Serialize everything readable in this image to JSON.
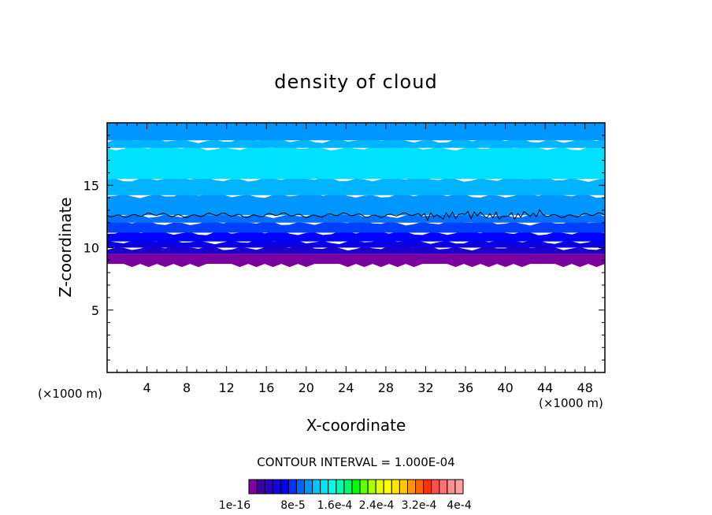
{
  "chart_data": {
    "type": "heatmap",
    "title": "density of cloud",
    "xlabel": "X-coordinate",
    "ylabel": "Z-coordinate",
    "x_unit_left": "(×1000 m)",
    "x_unit_right": "(×1000 m)",
    "xlim": [
      0,
      50
    ],
    "ylim": [
      0,
      20
    ],
    "x_ticks": [
      4,
      8,
      12,
      16,
      20,
      24,
      28,
      32,
      36,
      40,
      44,
      48
    ],
    "y_ticks": [
      5,
      10,
      15
    ],
    "contour_interval_text": "CONTOUR INTERVAL = 1.000E-04",
    "colorbar": {
      "labels": [
        "1e-16",
        "8e-5",
        "1.6e-4",
        "2.4e-4",
        "3.2e-4",
        "4e-4"
      ],
      "colors": [
        "#8000a0",
        "#3c00a0",
        "#2a00c8",
        "#1400e6",
        "#0000ff",
        "#0032ff",
        "#0064ff",
        "#0096ff",
        "#00c8ff",
        "#00e6ff",
        "#00ffe6",
        "#00ffaa",
        "#00ff64",
        "#00ff00",
        "#64ff00",
        "#aaff00",
        "#e6ff00",
        "#ffff00",
        "#ffe600",
        "#ffc800",
        "#ff9600",
        "#ff6400",
        "#ff3200",
        "#ff5050",
        "#ff7070",
        "#ff9090",
        "#ffa0a0"
      ]
    },
    "bands": [
      {
        "z0": 8.7,
        "z1": 9.5,
        "color": "#7a00a0"
      },
      {
        "z0": 9.5,
        "z1": 10.0,
        "color": "#1a00c8"
      },
      {
        "z0": 10.0,
        "z1": 10.5,
        "color": "#0a00e0"
      },
      {
        "z0": 10.5,
        "z1": 11.2,
        "color": "#0000ff"
      },
      {
        "z0": 11.2,
        "z1": 12.0,
        "color": "#0040ff"
      },
      {
        "z0": 12.0,
        "z1": 12.6,
        "color": "#0070ff"
      },
      {
        "z0": 12.6,
        "z1": 14.2,
        "color": "#0096ff"
      },
      {
        "z0": 14.2,
        "z1": 15.5,
        "color": "#00b4ff"
      },
      {
        "z0": 15.5,
        "z1": 18.0,
        "color": "#00e0ff"
      },
      {
        "z0": 18.0,
        "z1": 18.6,
        "color": "#00b4ff"
      },
      {
        "z0": 18.6,
        "z1": 20.0,
        "color": "#0096ff"
      }
    ],
    "contour_line_z": 12.6
  }
}
